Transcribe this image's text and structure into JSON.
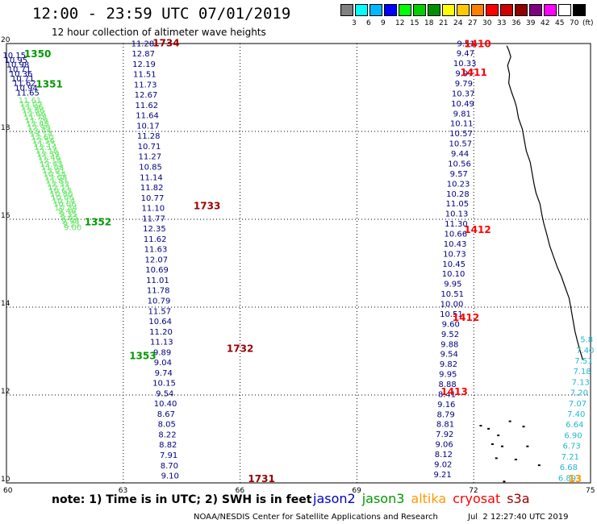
{
  "header": {
    "title": "12:00 - 23:59 UTC 07/01/2019",
    "subtitle": "12 hour collection of altimeter wave heights"
  },
  "color_scale": {
    "swatches": [
      "#808080",
      "#00ffff",
      "#00b8ff",
      "#0000ff",
      "#00ff00",
      "#00d000",
      "#009000",
      "#ffff00",
      "#ffc800",
      "#ff8000",
      "#ff0000",
      "#d00000",
      "#900000",
      "#800080",
      "#ff00ff",
      "#ffffff",
      "#000000"
    ],
    "labels": [
      "3",
      "6",
      "9",
      "12",
      "15",
      "18",
      "21",
      "24",
      "27",
      "30",
      "33",
      "36",
      "39",
      "42",
      "45",
      "70",
      "(ft)"
    ]
  },
  "map": {
    "lon_range": [
      60,
      75
    ],
    "lat_range": [
      10,
      20
    ],
    "lon_ticks": [
      "60",
      "63",
      "66",
      "69",
      "72",
      "75"
    ],
    "lat_ticks": [
      "10",
      "12",
      "14",
      "16",
      "18",
      "20"
    ]
  },
  "colors": {
    "jason2": "#0000cc",
    "jason3": "#009900",
    "altika": "#ff9900",
    "cryosat": "#ff0000",
    "s3a": "#990000",
    "dark": "#000080",
    "light": "#66e666",
    "cyan": "#22b8cc"
  },
  "tracks": [
    {
      "color": "dark",
      "lon0": 60.2,
      "lat0": 19.67,
      "lon1": 60.55,
      "lat1": 18.82,
      "values": [
        "10.15",
        "10.95",
        "10.98",
        "10.71",
        "10.36",
        "10.71",
        "11.62",
        "10.94",
        "11.65"
      ]
    },
    {
      "color": "light",
      "lon0": 60.6,
      "lat0": 18.64,
      "lon1": 61.7,
      "lat1": 15.75,
      "values": [
        "11.61",
        "12.02",
        "11.96",
        "12.86",
        "12.66",
        "11.78",
        "11.79",
        "12.48",
        "12.99",
        "12.74",
        "13.14",
        "12.60",
        "12.56",
        "11.55",
        "12.14",
        "11.16",
        "12.39",
        "11.46",
        "12.18",
        "12.43",
        "11.08",
        "13.01",
        "10.54",
        "12.08",
        "11.81",
        "12.32",
        "12.11",
        "10.63",
        "10.80",
        "10.06",
        "10.14",
        "10.06",
        "10.34",
        "9.46",
        "9.35",
        "9.65",
        "9.98",
        "9.21",
        "9.00"
      ]
    },
    {
      "color": "dark",
      "lon0": 63.5,
      "lat0": 19.94,
      "lon1": 64.2,
      "lat1": 10.1,
      "values": [
        "11.28",
        "12.87",
        "12.19",
        "11.51",
        "11.73",
        "12.67",
        "11.62",
        "11.64",
        "10.17",
        "11.28",
        "10.71",
        "11.27",
        "10.85",
        "11.14",
        "11.82",
        "10.77",
        "11.10",
        "11.77",
        "12.35",
        "11.62",
        "11.63",
        "12.07",
        "10.69",
        "11.01",
        "11.78",
        "10.79",
        "11.57",
        "10.64",
        "11.20",
        "11.13",
        "9.89",
        "9.04",
        "9.74",
        "10.15",
        "9.54",
        "10.40",
        "8.67",
        "8.05",
        "8.22",
        "8.82",
        "7.91",
        "8.70",
        "9.10"
      ]
    },
    {
      "color": "dark",
      "lon0": 71.8,
      "lat0": 19.94,
      "lon1": 71.2,
      "lat1": 10.13,
      "values": [
        "9.51",
        "9.47",
        "10.33",
        "9.97",
        "9.79",
        "10.37",
        "10.49",
        "9.81",
        "10.11",
        "10.57",
        "10.57",
        "9.44",
        "10.56",
        "9.57",
        "10.23",
        "10.28",
        "11.05",
        "10.13",
        "11.30",
        "10.66",
        "10.43",
        "10.73",
        "10.45",
        "10.10",
        "9.95",
        "10.51",
        "10.00",
        "10.51",
        "9.60",
        "9.52",
        "9.88",
        "9.54",
        "9.82",
        "9.95",
        "8.88",
        "8.41",
        "9.16",
        "8.79",
        "8.81",
        "7.92",
        "9.06",
        "8.12",
        "9.02",
        "9.21"
      ]
    },
    {
      "color": "cyan",
      "lon0": 74.9,
      "lat0": 13.2,
      "lon1": 74.4,
      "lat1": 10.05,
      "values": [
        "5.8",
        "7.40",
        "7.51",
        "7.18",
        "7.13",
        "7.20",
        "7.07",
        "7.40",
        "6.64",
        "6.90",
        "6.73",
        "7.21",
        "6.68",
        "6.89"
      ]
    }
  ],
  "time_labels": [
    {
      "text": "1350",
      "color": "jason3",
      "lon": 60.8,
      "lat": 19.69
    },
    {
      "text": "1351",
      "color": "jason3",
      "lon": 61.1,
      "lat": 19.0
    },
    {
      "text": "1352",
      "color": "jason3",
      "lon": 62.35,
      "lat": 15.86
    },
    {
      "text": "1353",
      "color": "jason3",
      "lon": 63.5,
      "lat": 12.82
    },
    {
      "text": "1734",
      "color": "s3a",
      "lon": 64.1,
      "lat": 19.94
    },
    {
      "text": "1733",
      "color": "s3a",
      "lon": 65.15,
      "lat": 16.23
    },
    {
      "text": "1732",
      "color": "s3a",
      "lon": 66.0,
      "lat": 12.98
    },
    {
      "text": "1731",
      "color": "s3a",
      "lon": 66.55,
      "lat": 10.02
    },
    {
      "text": "1410",
      "color": "cryosat",
      "lon": 72.1,
      "lat": 19.92
    },
    {
      "text": "1411",
      "color": "cryosat",
      "lon": 72.0,
      "lat": 19.27
    },
    {
      "text": "1412",
      "color": "cryosat",
      "lon": 72.1,
      "lat": 15.69
    },
    {
      "text": "1412",
      "color": "cryosat",
      "lon": 71.8,
      "lat": 13.69
    },
    {
      "text": "1413",
      "color": "cryosat",
      "lon": 71.5,
      "lat": 12.0
    },
    {
      "text": "13",
      "color": "altika",
      "lon": 74.6,
      "lat": 10.02
    }
  ],
  "coast": {
    "main": [
      [
        72.85,
        19.95
      ],
      [
        72.9,
        19.85
      ],
      [
        72.95,
        19.7
      ],
      [
        72.87,
        19.5
      ],
      [
        72.92,
        19.3
      ],
      [
        72.9,
        19.1
      ],
      [
        72.97,
        18.9
      ],
      [
        73.05,
        18.7
      ],
      [
        73.1,
        18.55
      ],
      [
        73.15,
        18.3
      ],
      [
        73.25,
        18.05
      ],
      [
        73.3,
        17.8
      ],
      [
        73.35,
        17.55
      ],
      [
        73.45,
        17.3
      ],
      [
        73.5,
        17.05
      ],
      [
        73.55,
        16.8
      ],
      [
        73.6,
        16.6
      ],
      [
        73.7,
        16.35
      ],
      [
        73.75,
        16.1
      ],
      [
        73.8,
        15.9
      ],
      [
        73.88,
        15.65
      ],
      [
        73.95,
        15.4
      ],
      [
        74.05,
        15.15
      ],
      [
        74.15,
        14.9
      ],
      [
        74.25,
        14.7
      ],
      [
        74.35,
        14.45
      ],
      [
        74.45,
        14.2
      ],
      [
        74.5,
        13.95
      ],
      [
        74.55,
        13.7
      ],
      [
        74.6,
        13.45
      ],
      [
        74.67,
        13.2
      ],
      [
        74.75,
        12.95
      ],
      [
        74.8,
        12.8
      ]
    ],
    "islands": [
      [
        72.15,
        11.32
      ],
      [
        72.35,
        11.25
      ],
      [
        72.6,
        11.1
      ],
      [
        72.9,
        11.42
      ],
      [
        73.25,
        11.3
      ],
      [
        72.45,
        10.9
      ],
      [
        72.7,
        10.85
      ],
      [
        73.35,
        10.85
      ],
      [
        73.05,
        10.55
      ],
      [
        72.55,
        10.58
      ],
      [
        73.65,
        10.42
      ],
      [
        72.75,
        10.05
      ]
    ]
  },
  "footer": {
    "note": "note: 1) Time is in UTC; 2) SWH is in feet",
    "legend": [
      {
        "text": "jason2",
        "color": "jason2"
      },
      {
        "text": "jason3",
        "color": "jason3"
      },
      {
        "text": "altika",
        "color": "altika"
      },
      {
        "text": "cryosat",
        "color": "cryosat"
      },
      {
        "text": "s3a",
        "color": "s3a"
      }
    ],
    "credit": "NOAA/NESDIS Center for Satellite Applications and Research",
    "timestamp": "Jul  2 12:27:40 UTC 2019"
  }
}
